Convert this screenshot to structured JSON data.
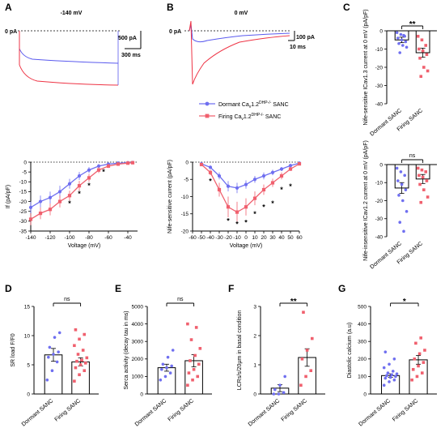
{
  "colors": {
    "dormant": "#6f6ff0",
    "firing": "#f0606e",
    "axis": "#000000",
    "trace_dormant": "#5a5aee",
    "trace_firing": "#ee3344"
  },
  "panels": {
    "A": "A",
    "B": "B",
    "C": "C",
    "D": "D",
    "E": "E",
    "F": "F",
    "G": "G"
  },
  "traceA": {
    "title": "-140 mV",
    "zero_label": "0 pA",
    "scale_y": "500 pA",
    "scale_x": "300 ms"
  },
  "traceB": {
    "title": "0 mV",
    "zero_label": "0 pA",
    "scale_y": "100 pA",
    "scale_x": "10 ms"
  },
  "legend": {
    "dormant": {
      "pre": "Dormant Ca",
      "sub": "v",
      "mid": "1.2",
      "sup": "DHP-/-",
      "post": " SANC"
    },
    "firing": {
      "pre": "Firing Ca",
      "sub": "v",
      "mid": "1.2",
      "sup": "DHP-/-",
      "post": " SANC"
    }
  },
  "groups": [
    "Dormant SANC",
    "Firing SANC"
  ],
  "sig": {
    "c_top": "**",
    "c_bottom": "ns",
    "d": "ns",
    "e": "ns",
    "f": "**",
    "g": "*"
  },
  "chart_data": [
    {
      "id": "A_iv",
      "type": "line",
      "xlabel": "Voltage (mV)",
      "ylabel": "If (pA/pF)",
      "xlim": [
        -140,
        -30
      ],
      "ylim": [
        -35,
        0
      ],
      "xticks": [
        -140,
        -120,
        -100,
        -80,
        -60,
        -40
      ],
      "yticks": [
        0,
        -5,
        -10,
        -15,
        -20,
        -25,
        -30,
        -35
      ],
      "series": [
        {
          "group": "dormant",
          "x": [
            -140,
            -130,
            -120,
            -110,
            -100,
            -90,
            -80,
            -70,
            -60,
            -50,
            -40,
            -35
          ],
          "y": [
            -23,
            -20,
            -18,
            -15,
            -11,
            -7,
            -4,
            -2,
            -1,
            -0.5,
            -0.3,
            -0.2
          ],
          "err": [
            3,
            3,
            3,
            3,
            2.5,
            2,
            1.5,
            1,
            0.5,
            0.3,
            0.2,
            0.2
          ]
        },
        {
          "group": "firing",
          "x": [
            -140,
            -130,
            -120,
            -110,
            -100,
            -90,
            -80,
            -70,
            -60,
            -50,
            -40,
            -35
          ],
          "y": [
            -29,
            -26,
            -24,
            -20,
            -17,
            -12,
            -8,
            -4,
            -2,
            -1,
            -0.5,
            -0.3
          ],
          "err": [
            3,
            3,
            3,
            3,
            2.5,
            2.5,
            2,
            1.5,
            1,
            0.5,
            0.3,
            0.2
          ]
        }
      ],
      "stars": {
        "x": [
          -100,
          -90,
          -80,
          -65
        ],
        "y": [
          -21,
          -16,
          -12,
          -5
        ]
      }
    },
    {
      "id": "B_iv",
      "type": "line",
      "xlabel": "Voltage (mV)",
      "ylabel": "Nife-sensitive current (pA/pF)",
      "xlim": [
        -60,
        60
      ],
      "ylim": [
        -20,
        0
      ],
      "xticks": [
        -60,
        -50,
        -40,
        -30,
        -20,
        -10,
        0,
        10,
        20,
        30,
        40,
        50,
        60
      ],
      "yticks": [
        0,
        -5,
        -10,
        -15,
        -20
      ],
      "series": [
        {
          "group": "dormant",
          "x": [
            -50,
            -40,
            -30,
            -20,
            -10,
            0,
            10,
            20,
            30,
            40,
            50,
            60
          ],
          "y": [
            -0.5,
            -1.5,
            -4,
            -7,
            -7.5,
            -6.5,
            -5,
            -4,
            -3,
            -2,
            -1,
            -0.3
          ],
          "err": [
            0.3,
            0.5,
            1,
            1.5,
            1.5,
            1.2,
            1,
            1,
            0.8,
            0.6,
            0.4,
            0.2
          ]
        },
        {
          "group": "firing",
          "x": [
            -50,
            -40,
            -30,
            -20,
            -10,
            0,
            10,
            20,
            30,
            40,
            50,
            60
          ],
          "y": [
            -0.7,
            -3,
            -8,
            -13,
            -14.5,
            -13,
            -10.5,
            -8,
            -6,
            -4,
            -2,
            -0.5
          ],
          "err": [
            0.3,
            0.8,
            2,
            3,
            3,
            2.5,
            2,
            1.5,
            1.2,
            1,
            0.6,
            0.3
          ]
        }
      ],
      "stars": {
        "x": [
          -40,
          -20,
          -10,
          0,
          10,
          20,
          30,
          40,
          50
        ],
        "y": [
          -5.5,
          -17,
          -18,
          -17.5,
          -15,
          -13,
          -12,
          -8,
          -7
        ]
      }
    },
    {
      "id": "C_top",
      "type": "bar",
      "ylabel": "Nife-sensitive ICav1.3 current at 0 mV (pA/pF)",
      "ylim": [
        -40,
        0
      ],
      "yticks": [
        0,
        -10,
        -20,
        -30,
        -40
      ],
      "categories": [
        "Dormant SANC",
        "Firing SANC"
      ],
      "values": [
        -5,
        -12
      ],
      "err": [
        1.5,
        2.5
      ],
      "points": [
        [
          -1,
          -2,
          -3,
          -4,
          -5,
          -6,
          -7,
          -8,
          -9,
          -12,
          -2.5
        ],
        [
          -3,
          -5,
          -8,
          -10,
          -11,
          -13,
          -15,
          -20,
          -22,
          -25
        ]
      ]
    },
    {
      "id": "C_bottom",
      "type": "bar",
      "ylabel": "Nife-insensitive ICav1.2 current at 0 mV (pA/pF)",
      "ylim": [
        -40,
        0
      ],
      "yticks": [
        0,
        -10,
        -20,
        -30,
        -40
      ],
      "categories": [
        "Dormant SANC",
        "Firing SANC"
      ],
      "values": [
        -13,
        -8
      ],
      "err": [
        3,
        2.5
      ],
      "points": [
        [
          -2,
          -4,
          -6,
          -9,
          -11,
          -14,
          -17,
          -20,
          -26,
          -32,
          -37
        ],
        [
          -2,
          -3,
          -4,
          -6,
          -7,
          -9,
          -11,
          -14,
          -18,
          -21
        ]
      ]
    },
    {
      "id": "D",
      "type": "bar",
      "ylabel": "SR load F/F0",
      "ylim": [
        0,
        15
      ],
      "yticks": [
        0,
        5,
        10,
        15
      ],
      "categories": [
        "Dormant SANC",
        "Firing SANC"
      ],
      "values": [
        6.7,
        5.5
      ],
      "err": [
        1.1,
        0.7
      ],
      "points": [
        [
          2.4,
          4.0,
          5.5,
          6.3,
          6.8,
          7.2,
          8.0,
          9.7,
          10.5
        ],
        [
          2.2,
          3.3,
          4.0,
          4.5,
          5.0,
          5.3,
          5.6,
          5.8,
          6.2,
          6.8,
          7.5,
          8.3,
          9.4,
          10.2,
          11.0
        ]
      ]
    },
    {
      "id": "E",
      "type": "bar",
      "ylabel": "Serca activity (decay tau in ms)",
      "ylim": [
        0,
        5000
      ],
      "yticks": [
        0,
        1000,
        2000,
        3000,
        4000,
        5000
      ],
      "categories": [
        "Dormant SANC",
        "Firing SANC"
      ],
      "values": [
        1500,
        1900
      ],
      "err": [
        200,
        350
      ],
      "points": [
        [
          800,
          1000,
          1200,
          1400,
          1500,
          1600,
          1700,
          2100,
          2500
        ],
        [
          500,
          800,
          1000,
          1200,
          1400,
          1700,
          1900,
          2200,
          2600,
          3100,
          3800,
          4000
        ]
      ]
    },
    {
      "id": "F",
      "type": "bar",
      "ylabel": "LCRs/s/20µm in basal condition",
      "ylim": [
        0,
        3
      ],
      "yticks": [
        0,
        1,
        2,
        3
      ],
      "categories": [
        "Dormant SANC",
        "Firing SANC"
      ],
      "values": [
        0.2,
        1.25
      ],
      "err": [
        0.12,
        0.3
      ],
      "points": [
        [
          0,
          0,
          0.05,
          0.15,
          0.3,
          0.6
        ],
        [
          0.3,
          0.6,
          0.8,
          1.2,
          1.5,
          1.9,
          2.8
        ]
      ]
    },
    {
      "id": "G",
      "type": "bar",
      "ylabel": "Diastolic calcium (a.u)",
      "ylim": [
        0,
        500
      ],
      "yticks": [
        0,
        100,
        200,
        300,
        400,
        500
      ],
      "categories": [
        "Dormant SANC",
        "Firing SANC"
      ],
      "values": [
        105,
        195
      ],
      "err": [
        10,
        25
      ],
      "points": [
        [
          50,
          70,
          80,
          90,
          95,
          100,
          105,
          110,
          115,
          120,
          130,
          150,
          170,
          200,
          240
        ],
        [
          80,
          100,
          120,
          140,
          160,
          180,
          200,
          230,
          250,
          290,
          320
        ]
      ]
    }
  ]
}
